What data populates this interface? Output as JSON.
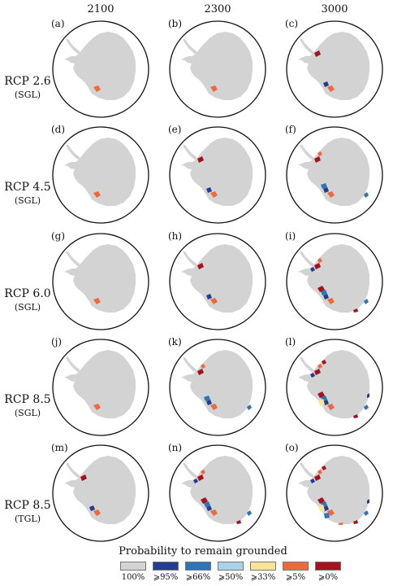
{
  "columns": [
    "2100",
    "2300",
    "3000"
  ],
  "rows": [
    {
      "scenario": "RCP 2.6",
      "type": "(SGL)"
    },
    {
      "scenario": "RCP 4.5",
      "type": "(SGL)"
    },
    {
      "scenario": "RCP 6.0",
      "type": "(SGL)"
    },
    {
      "scenario": "RCP 8.5",
      "type": "(SGL)"
    },
    {
      "scenario": "RCP 8.5",
      "type": "(TGL)"
    }
  ],
  "panel_letters": [
    "(a)",
    "(b)",
    "(c)",
    "(d)",
    "(e)",
    "(f)",
    "(g)",
    "(h)",
    "(i)",
    "(j)",
    "(k)",
    "(l)",
    "(m)",
    "(n)",
    "(o)"
  ],
  "legend": {
    "title": "Probability to remain grounded",
    "items": [
      {
        "label": "100%",
        "color": "#d3d3d3"
      },
      {
        "label": "⩾95%",
        "color": "#223d91"
      },
      {
        "label": "⩾66%",
        "color": "#2f75b5"
      },
      {
        "label": "⩾50%",
        "color": "#a9d3e9"
      },
      {
        "label": "⩾33%",
        "color": "#fde39a"
      },
      {
        "label": "⩾5%",
        "color": "#ed6a3e"
      },
      {
        "label": "⩾0%",
        "color": "#a6101f"
      }
    ]
  },
  "panel_loss_level": [
    [
      1,
      1,
      2
    ],
    [
      1,
      2,
      3
    ],
    [
      1,
      2,
      4
    ],
    [
      1,
      3,
      5
    ],
    [
      2,
      4,
      6
    ]
  ]
}
